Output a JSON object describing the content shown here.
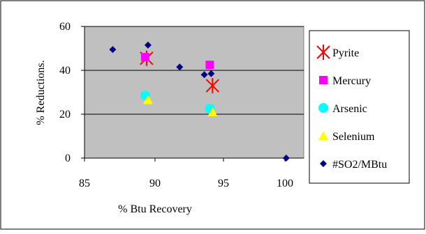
{
  "chart_data": {
    "type": "scatter",
    "title": "",
    "xlabel": "% Btu Recovery",
    "ylabel": "% Reductions.",
    "xlim": [
      85,
      101
    ],
    "ylim": [
      0,
      60
    ],
    "x_ticks": [
      "85",
      "90",
      "95",
      "100"
    ],
    "x_tick_values": [
      85,
      90,
      95,
      100
    ],
    "y_ticks": [
      "0",
      "20",
      "40",
      "60"
    ],
    "y_tick_values": [
      0,
      20,
      40,
      60
    ],
    "grid": "horizontal",
    "legend_position": "right",
    "plot_background": "#c0c0c0",
    "series": [
      {
        "name": "Pyrite",
        "marker": "asterisk",
        "color": "#ff0000",
        "points": [
          [
            89.4,
            45.5
          ],
          [
            94.2,
            33.0
          ]
        ]
      },
      {
        "name": "Mercury",
        "marker": "square",
        "color": "#ff00ff",
        "points": [
          [
            89.3,
            46.0
          ],
          [
            94.0,
            42.5
          ]
        ]
      },
      {
        "name": "Arsenic",
        "marker": "circle",
        "color": "#00ffff",
        "points": [
          [
            89.3,
            28.5
          ],
          [
            94.0,
            22.5
          ]
        ]
      },
      {
        "name": "Selenium",
        "marker": "triangle",
        "color": "#ffff00",
        "points": [
          [
            89.5,
            26.5
          ],
          [
            94.2,
            21.0
          ]
        ]
      },
      {
        "name": "#SO2/MBtu",
        "marker": "diamond",
        "color": "#000080",
        "points": [
          [
            87.0,
            49.5
          ],
          [
            89.5,
            51.5
          ],
          [
            91.8,
            41.5
          ],
          [
            93.6,
            38.0
          ],
          [
            94.1,
            38.5
          ],
          [
            100.1,
            0.0
          ]
        ]
      }
    ]
  }
}
